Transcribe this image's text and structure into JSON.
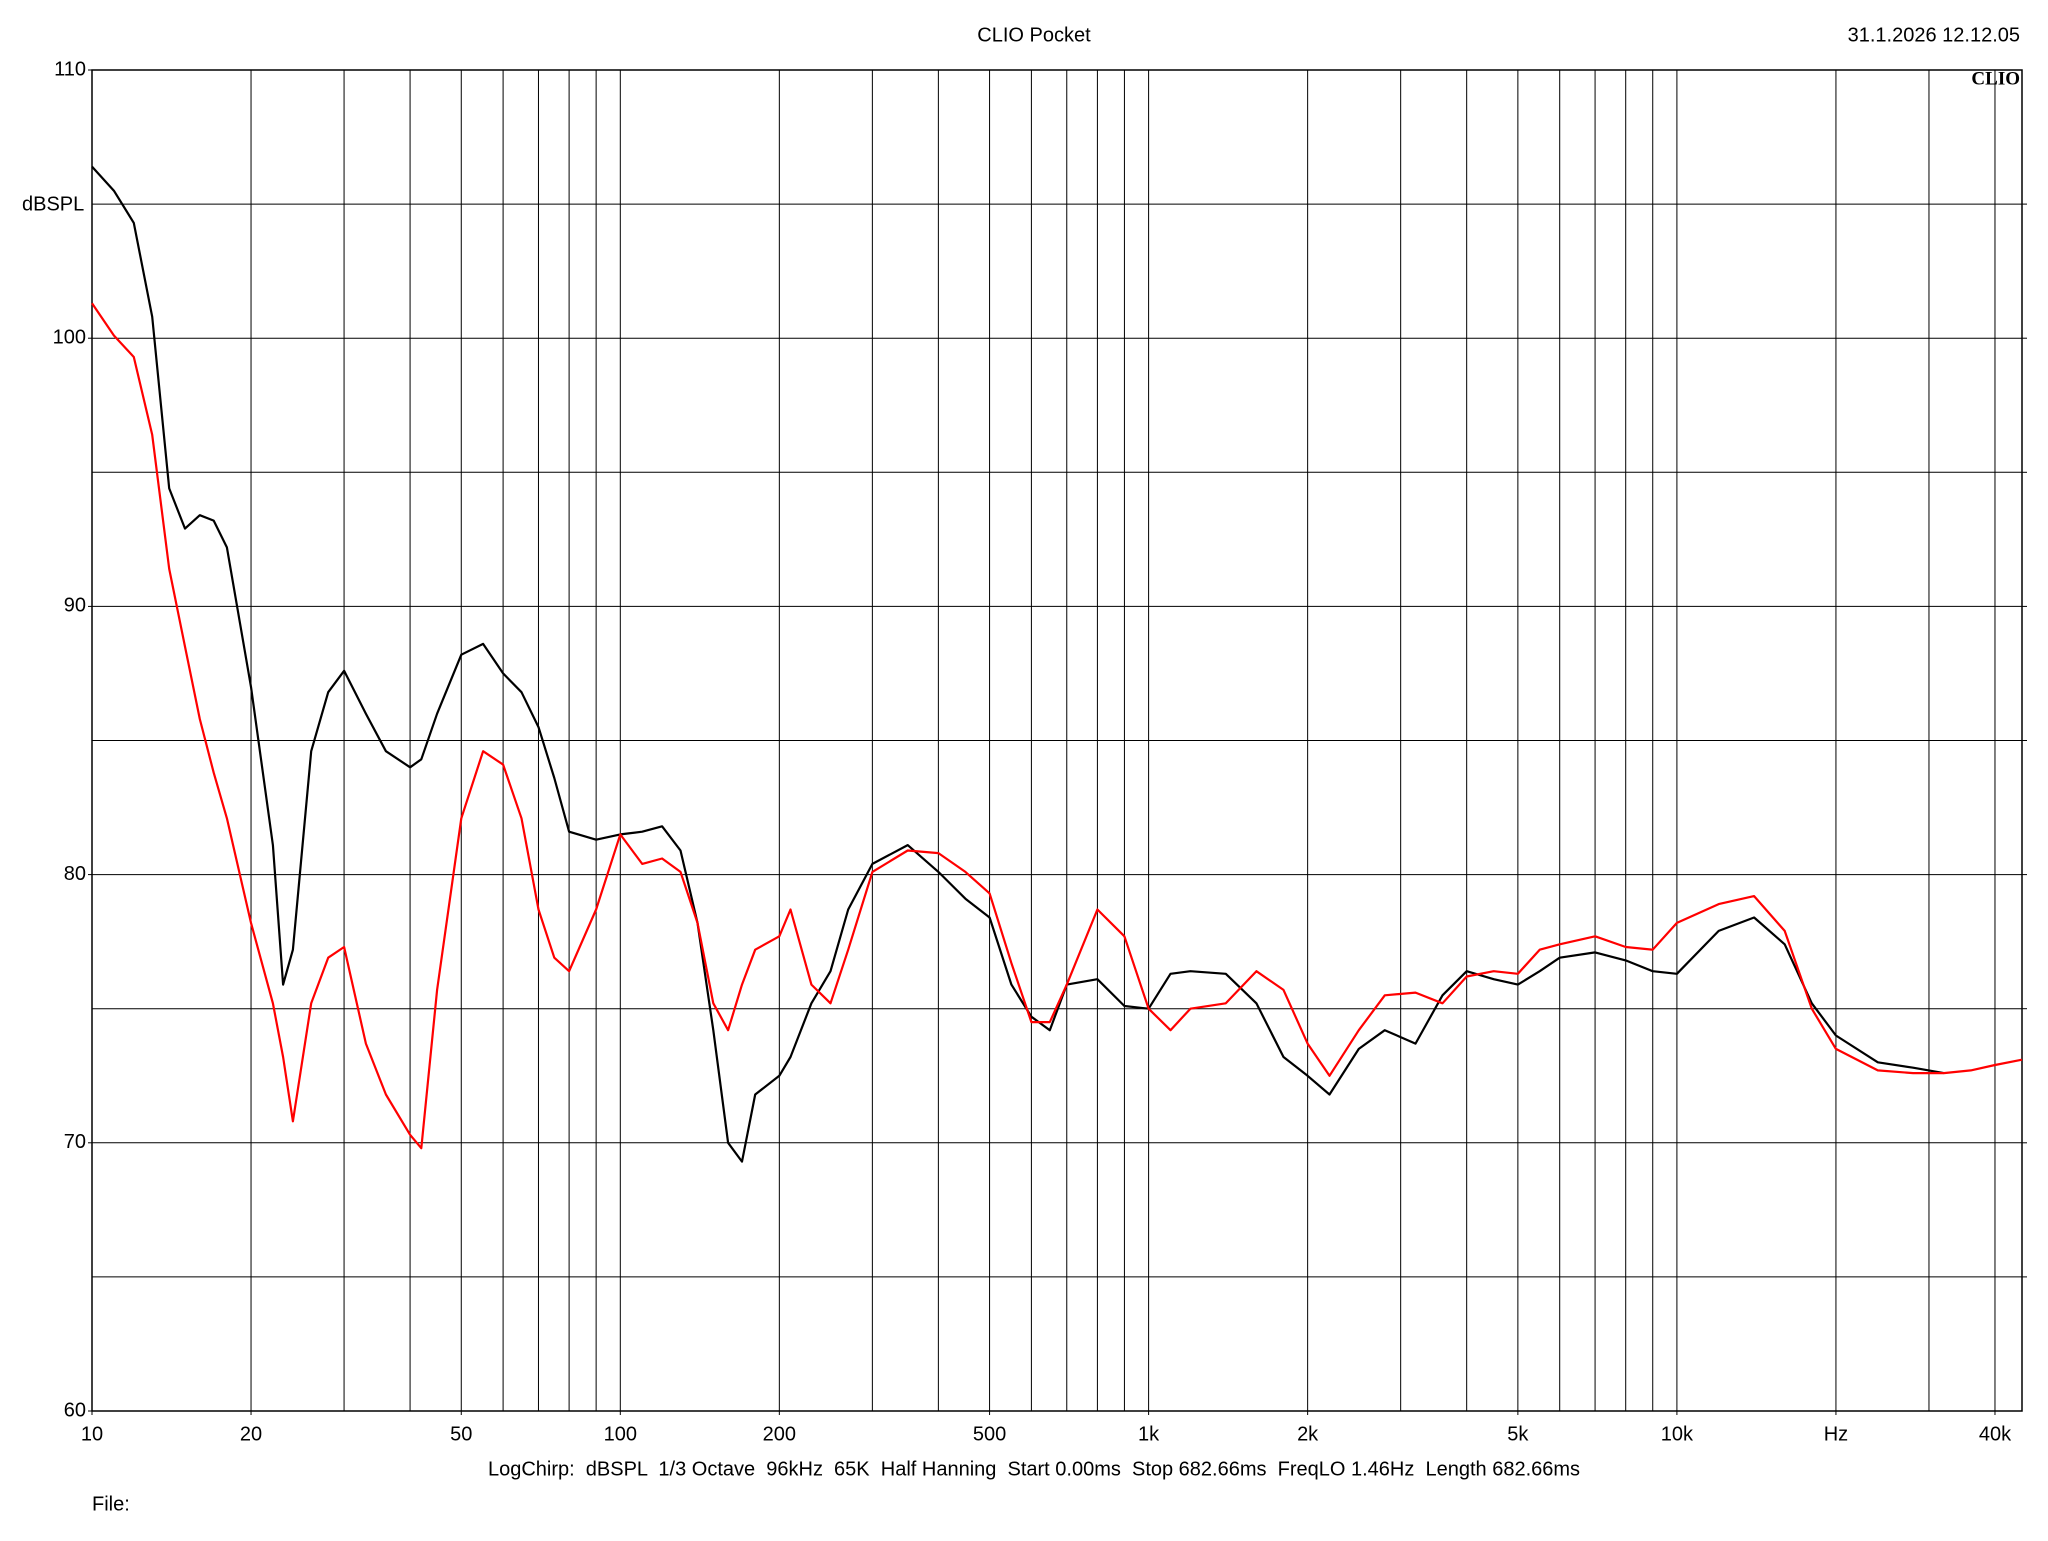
{
  "chart_data": {
    "type": "line",
    "title": "CLIO Pocket",
    "timestamp": "31.1.2026 12.12.05",
    "logo": "CLIO",
    "ylabel": "dBSPL",
    "footer": "LogChirp:  dBSPL  1/3 Octave  96kHz  65K  Half Hanning  Start 0.00ms  Stop 682.66ms  FreqLO 1.46Hz  Length 682.66ms",
    "file_label": "File:",
    "xscale": "log",
    "grid": true,
    "xlim": [
      10,
      45000
    ],
    "ylim": [
      60,
      110
    ],
    "xticks": [
      10,
      20,
      50,
      100,
      200,
      500,
      {
        "value": 1000,
        "label": "1k"
      },
      {
        "value": 2000,
        "label": "2k"
      },
      {
        "value": 5000,
        "label": "5k"
      },
      {
        "value": 10000,
        "label": "10k"
      },
      {
        "value": 20000,
        "label": "Hz"
      },
      {
        "value": 40000,
        "label": "40k"
      }
    ],
    "xgrid": [
      20,
      30,
      40,
      50,
      60,
      70,
      80,
      90,
      100,
      200,
      300,
      400,
      500,
      600,
      700,
      800,
      900,
      1000,
      2000,
      3000,
      4000,
      5000,
      6000,
      7000,
      8000,
      9000,
      10000,
      20000,
      30000,
      40000
    ],
    "yticks": [
      60,
      70,
      80,
      90,
      100,
      110
    ],
    "ygrid": [
      65,
      70,
      75,
      80,
      85,
      90,
      95,
      100,
      105
    ],
    "x": [
      10,
      11,
      12,
      13,
      14,
      15,
      16,
      17,
      18,
      20,
      22,
      23,
      24,
      26,
      28,
      30,
      33,
      36,
      40,
      42,
      45,
      50,
      55,
      60,
      65,
      70,
      75,
      80,
      90,
      100,
      110,
      120,
      130,
      140,
      150,
      160,
      170,
      180,
      200,
      210,
      230,
      250,
      270,
      300,
      350,
      400,
      450,
      500,
      550,
      600,
      650,
      700,
      800,
      900,
      1000,
      1100,
      1200,
      1400,
      1600,
      1800,
      2000,
      2200,
      2500,
      2800,
      3200,
      3600,
      4000,
      4500,
      5000,
      5500,
      6000,
      7000,
      8000,
      9000,
      10000,
      12000,
      14000,
      16000,
      18000,
      20000,
      24000,
      28000,
      32000,
      36000,
      40000,
      45000
    ],
    "series": [
      {
        "name": "Black",
        "color": "#000000",
        "values": [
          106.4,
          105.5,
          104.3,
          100.8,
          94.4,
          92.9,
          93.4,
          93.2,
          92.2,
          87.0,
          81.1,
          75.9,
          77.2,
          84.6,
          86.8,
          87.6,
          86.0,
          84.6,
          84.0,
          84.3,
          86.0,
          88.2,
          88.6,
          87.5,
          86.8,
          85.5,
          83.6,
          81.6,
          81.3,
          81.5,
          81.6,
          81.8,
          80.9,
          78.2,
          74.2,
          70.0,
          69.3,
          71.8,
          72.5,
          73.2,
          75.2,
          76.4,
          78.7,
          80.4,
          81.1,
          80.1,
          79.1,
          78.4,
          75.9,
          74.7,
          74.2,
          75.9,
          76.1,
          75.1,
          75.0,
          76.3,
          76.4,
          76.3,
          75.2,
          73.2,
          72.5,
          71.8,
          73.5,
          74.2,
          73.7,
          75.5,
          76.4,
          76.1,
          75.9,
          76.4,
          76.9,
          77.1,
          76.8,
          76.4,
          76.3,
          77.9,
          78.4,
          77.4,
          75.2,
          74.0,
          73.0,
          72.8,
          72.6,
          null,
          null,
          null
        ]
      },
      {
        "name": "Red",
        "color": "#ff0000",
        "values": [
          101.3,
          100.1,
          99.3,
          96.4,
          91.4,
          88.5,
          85.8,
          83.8,
          82.1,
          78.2,
          75.2,
          73.2,
          70.8,
          75.2,
          76.9,
          77.3,
          73.7,
          71.8,
          70.3,
          69.8,
          75.7,
          82.1,
          84.6,
          84.1,
          82.1,
          78.7,
          76.9,
          76.4,
          78.7,
          81.5,
          80.4,
          80.6,
          80.1,
          78.2,
          75.2,
          74.2,
          75.9,
          77.2,
          77.7,
          78.7,
          75.9,
          75.2,
          77.2,
          80.1,
          80.9,
          80.8,
          80.1,
          79.3,
          76.7,
          74.5,
          74.5,
          75.9,
          78.7,
          77.7,
          75.0,
          74.2,
          75.0,
          75.2,
          76.4,
          75.7,
          73.7,
          72.5,
          74.2,
          75.5,
          75.6,
          75.2,
          76.2,
          76.4,
          76.3,
          77.2,
          77.4,
          77.7,
          77.3,
          77.2,
          78.2,
          78.9,
          79.2,
          77.9,
          75.0,
          73.5,
          72.7,
          72.6,
          72.6,
          72.7,
          72.9,
          73.1
        ]
      }
    ]
  }
}
